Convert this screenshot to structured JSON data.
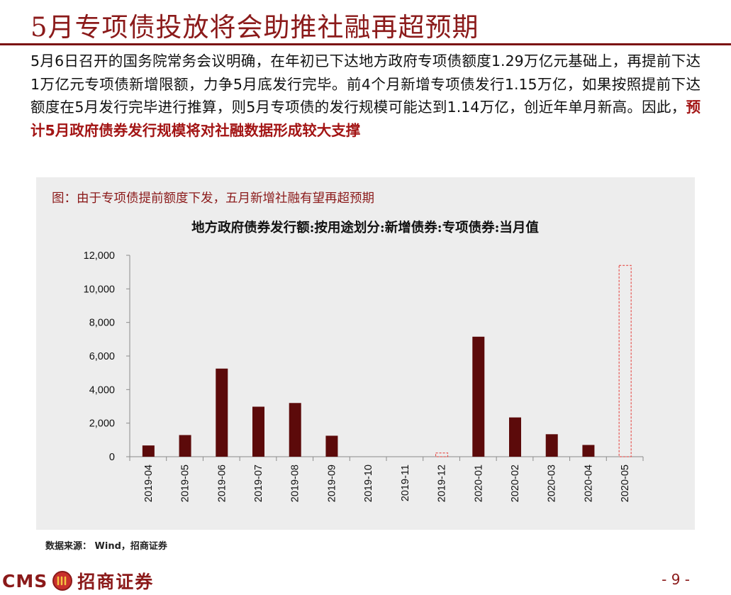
{
  "slide": {
    "title": "5月专项债投放将会助推社融再超预期"
  },
  "body": {
    "text_normal": "5月6日召开的国务院常务会议明确，在年初已下达地方政府专项债额度1.29万亿元基础上，再提前下达1万亿元专项债新增限额，力争5月底发行完毕。前4个月新增专项债发行1.15万亿，如果按照提前下达额度在5月发行完毕进行推算，则5月专项债的发行规模可能达到1.14万亿，创近年单月新高。因此，",
    "text_highlight": "预计5月政府债券发行规模将对社融数据形成较大支撑"
  },
  "figure": {
    "caption": "图：由于专项债提前额度下发，五月新增社融有望再超预期",
    "source": "数据来源： Wind，招商证券"
  },
  "chart_data": {
    "type": "bar",
    "title": "地方政府债券发行额:按用途划分:新增债券:专项债券:当月值",
    "categories": [
      "2019-04",
      "2019-05",
      "2019-06",
      "2019-07",
      "2019-08",
      "2019-09",
      "2019-10",
      "2019-11",
      "2019-12",
      "2020-01",
      "2020-02",
      "2020-03",
      "2020-04",
      "2020-05"
    ],
    "values": [
      670,
      1290,
      5250,
      2980,
      3200,
      1250,
      0,
      0,
      220,
      7150,
      2340,
      1340,
      700,
      11400
    ],
    "estimated": [
      false,
      false,
      false,
      false,
      false,
      false,
      false,
      false,
      true,
      false,
      false,
      false,
      false,
      true
    ],
    "ylim": [
      0,
      12000
    ],
    "yticks": [
      0,
      2000,
      4000,
      6000,
      8000,
      10000,
      12000
    ],
    "ytick_labels": [
      "0",
      "2,000",
      "4,000",
      "6,000",
      "8,000",
      "10,000",
      "12,000"
    ],
    "xlabel": "",
    "ylabel": "",
    "grid": false,
    "legend": "none",
    "colors": {
      "bar": "#5c0a0a",
      "estimated_outline": "#e53935",
      "axis": "#8c8c8c"
    }
  },
  "footer": {
    "brand_en": "CMS",
    "brand_cn": "招商证券",
    "page": "- 9 -"
  },
  "colors": {
    "title": "#8b1a1a",
    "rule": "#7b0f0f",
    "panel": "#ededed"
  }
}
